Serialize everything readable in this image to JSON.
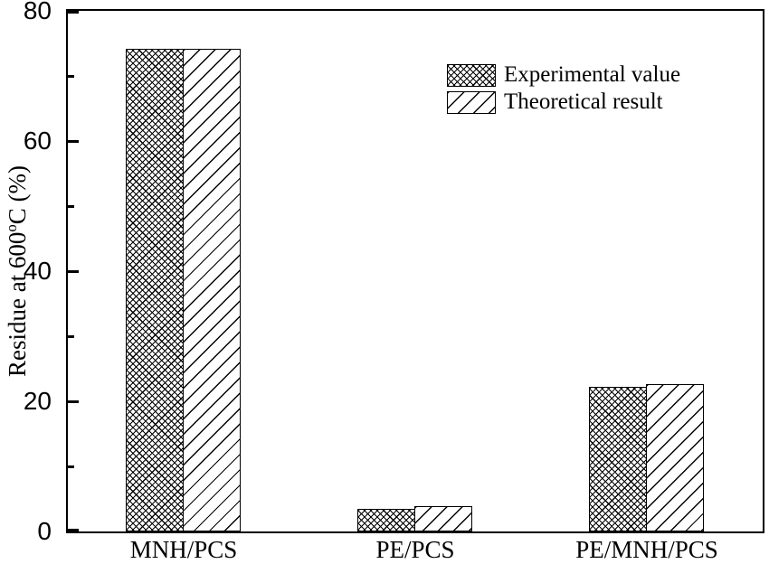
{
  "chart_data": {
    "type": "bar",
    "title": "",
    "categories": [
      "MNH/PCS",
      "PE/PCS",
      "PE/MNH/PCS"
    ],
    "series": [
      {
        "name": "Experimental value",
        "pattern": "crosshatch",
        "values": [
          74.2,
          3.5,
          22.2
        ]
      },
      {
        "name": "Theoretical result",
        "pattern": "diagonal",
        "values": [
          74.2,
          3.9,
          22.7
        ]
      }
    ],
    "xlabel": "",
    "ylabel": "Residue at 600°C (%)",
    "ylabel_parts": {
      "pre": "Residue at 600",
      "sup": "o",
      "post": "C (%)"
    },
    "ylim": [
      0,
      80
    ],
    "yticks_major": [
      0,
      20,
      40,
      60,
      80
    ],
    "yticks_minor": [
      10,
      30,
      50,
      70
    ],
    "grid": false,
    "legend_position": "upper-right-inside",
    "colors": {
      "foreground": "#000000",
      "background": "#ffffff"
    }
  }
}
